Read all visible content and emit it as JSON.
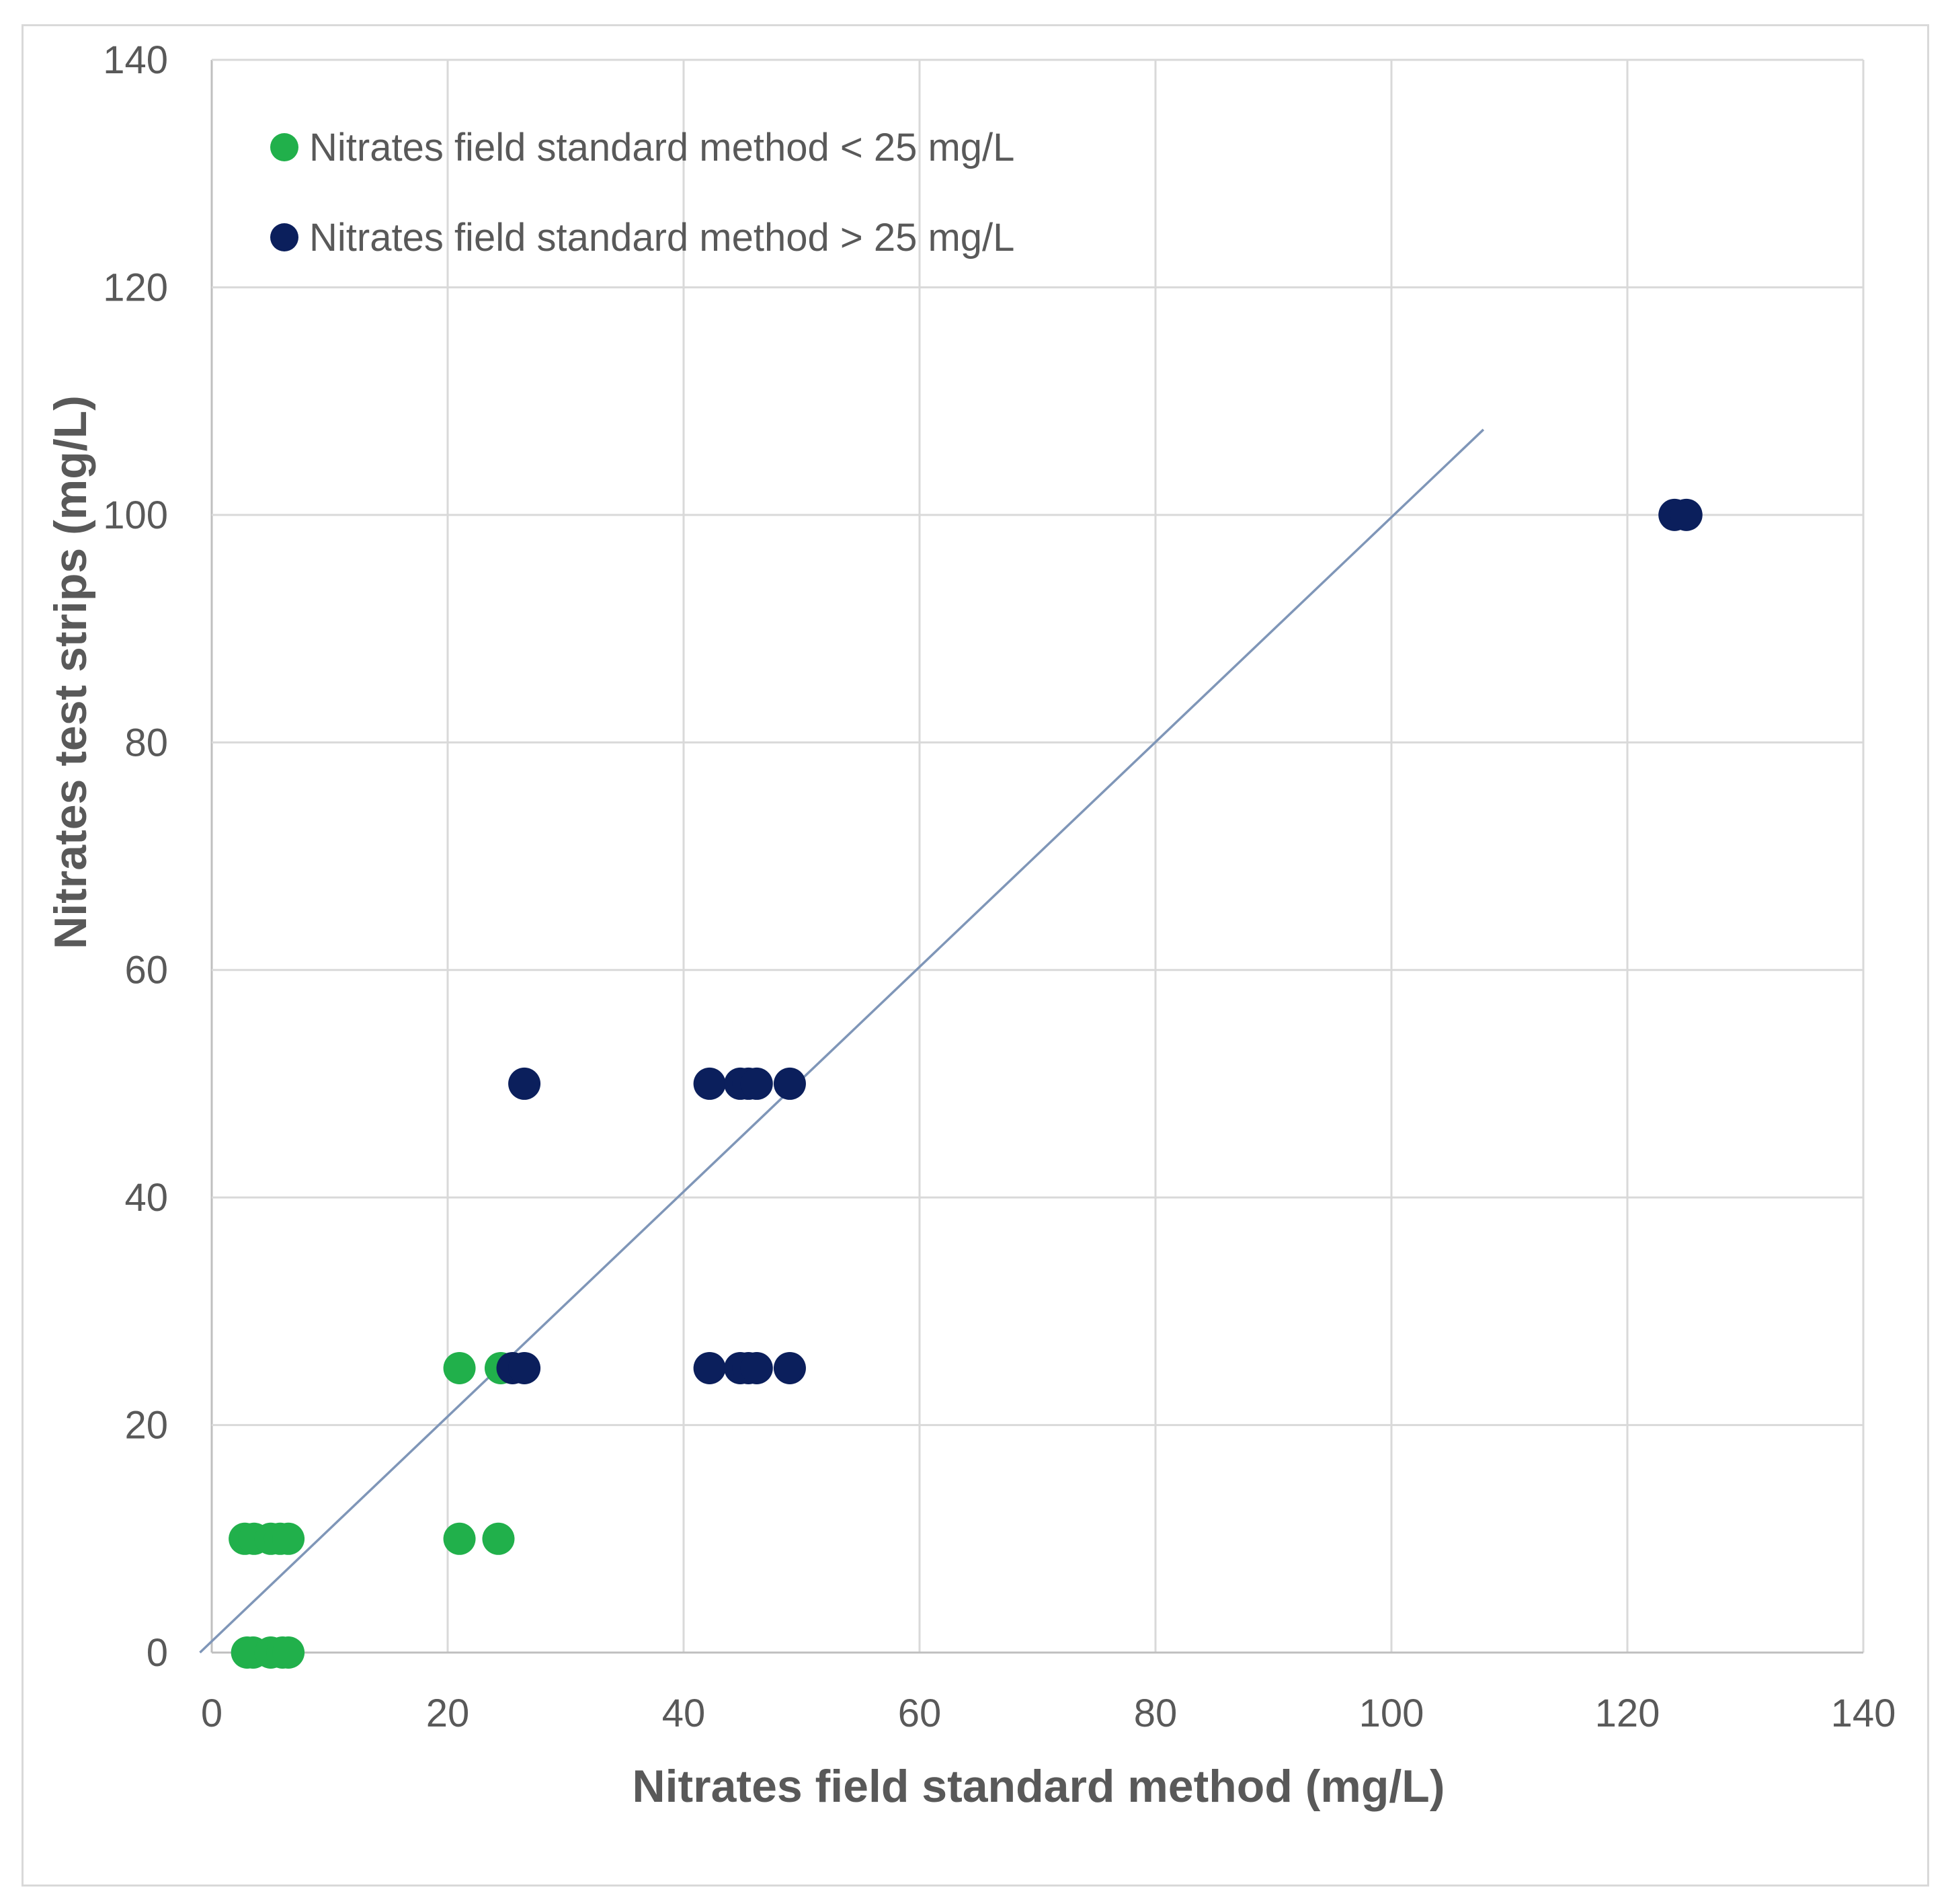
{
  "chart_data": {
    "type": "scatter",
    "title": "",
    "xlabel": "Nitrates field standard method (mg/L)",
    "ylabel": "Nitrates test strips (mg/L)",
    "xlim": [
      0,
      140
    ],
    "ylim": [
      0,
      140
    ],
    "xticks": [
      0,
      20,
      40,
      60,
      80,
      100,
      120,
      140
    ],
    "yticks": [
      0,
      20,
      40,
      60,
      80,
      100,
      120,
      140
    ],
    "grid": true,
    "legend_position": "top-left",
    "series": [
      {
        "name": "Nitrates  field standard method < 25 mg/L",
        "color": "#21b04b",
        "points": [
          [
            3,
            0
          ],
          [
            3.5,
            0
          ],
          [
            5,
            0
          ],
          [
            6,
            0
          ],
          [
            6.5,
            0
          ],
          [
            2.8,
            10
          ],
          [
            3.6,
            10
          ],
          [
            5,
            10
          ],
          [
            5.8,
            10
          ],
          [
            6.5,
            10
          ],
          [
            21,
            10
          ],
          [
            24.3,
            10
          ],
          [
            21,
            25
          ],
          [
            24.5,
            25
          ]
        ]
      },
      {
        "name": "Nitrates  field standard method > 25 mg/L",
        "color": "#0b1f5c",
        "points": [
          [
            25.5,
            25
          ],
          [
            26.5,
            25
          ],
          [
            26.5,
            50
          ],
          [
            42.2,
            25
          ],
          [
            44.8,
            25
          ],
          [
            45.5,
            25
          ],
          [
            46.2,
            25
          ],
          [
            49,
            25
          ],
          [
            42.2,
            50
          ],
          [
            44.8,
            50
          ],
          [
            45.5,
            50
          ],
          [
            46.2,
            50
          ],
          [
            49,
            50
          ],
          [
            124,
            100
          ],
          [
            125,
            100
          ]
        ]
      }
    ],
    "trendline": {
      "color": "#7f96b8",
      "from": [
        -1,
        0
      ],
      "to": [
        107.8,
        107.5
      ]
    }
  }
}
